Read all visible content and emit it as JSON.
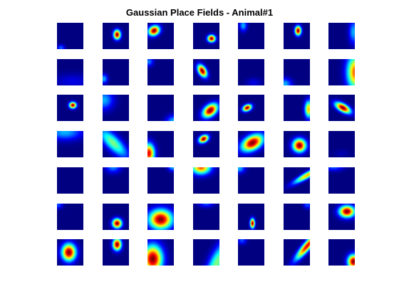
{
  "chart_data": {
    "type": "heatmap",
    "title": "Gaussian Place Fields - Animal#1",
    "grid": {
      "rows": 7,
      "cols": 7
    },
    "colormap": "jet",
    "background_color": "#00008f",
    "xlim": [
      0,
      1
    ],
    "ylim": [
      0,
      1
    ],
    "axes_visible": false,
    "fields": [
      [
        {
          "cx": 0.15,
          "cy": 0.95,
          "sx": 0.1,
          "sy": 0.08,
          "theta": 0,
          "amp": 0.22
        },
        {
          "cx": 0.55,
          "cy": 0.45,
          "sx": 0.09,
          "sy": 0.12,
          "theta": 0,
          "amp": 1.0
        },
        {
          "cx": 0.25,
          "cy": 0.3,
          "sx": 0.15,
          "sy": 0.12,
          "theta": -30,
          "amp": 1.0
        },
        {
          "cx": 0.7,
          "cy": 0.6,
          "sx": 0.1,
          "sy": 0.09,
          "theta": 0,
          "amp": 1.0
        },
        {
          "cx": 0.2,
          "cy": 0.1,
          "sx": 0.1,
          "sy": 0.15,
          "theta": 0,
          "amp": 0.3
        },
        {
          "cx": 0.55,
          "cy": 0.3,
          "sx": 0.08,
          "sy": 0.12,
          "theta": 0,
          "amp": 1.0
        },
        {
          "cx": 0.95,
          "cy": 0.35,
          "sx": 0.12,
          "sy": 0.3,
          "theta": 0,
          "amp": 0.3
        }
      ],
      [
        {
          "cx": 0.6,
          "cy": 0.85,
          "sx": 0.5,
          "sy": 0.2,
          "theta": 0,
          "amp": 0.1
        },
        {
          "cx": 0.05,
          "cy": 0.75,
          "sx": 0.1,
          "sy": 0.12,
          "theta": 0,
          "amp": 0.3
        },
        {
          "cx": 0.05,
          "cy": 0.1,
          "sx": 0.12,
          "sy": 0.12,
          "theta": 0,
          "amp": 0.25
        },
        {
          "cx": 0.35,
          "cy": 0.45,
          "sx": 0.1,
          "sy": 0.17,
          "theta": -30,
          "amp": 1.0
        },
        {
          "cx": 0.6,
          "cy": 0.9,
          "sx": 0.2,
          "sy": 0.12,
          "theta": 0,
          "amp": 0.1
        },
        {
          "cx": 0.05,
          "cy": 0.95,
          "sx": 0.18,
          "sy": 0.15,
          "theta": 0,
          "amp": 0.3
        },
        {
          "cx": 1.02,
          "cy": 0.5,
          "sx": 0.22,
          "sy": 0.45,
          "theta": 0,
          "amp": 0.8
        }
      ],
      [
        {
          "cx": 0.6,
          "cy": 0.4,
          "sx": 0.09,
          "sy": 0.08,
          "theta": 0,
          "amp": 1.0
        },
        {
          "cx": 0.05,
          "cy": 0.2,
          "sx": 0.25,
          "sy": 0.25,
          "theta": 30,
          "amp": 0.3
        },
        {
          "cx": 1.0,
          "cy": 1.0,
          "sx": 0.2,
          "sy": 0.15,
          "theta": 0,
          "amp": 0.3
        },
        {
          "cx": 0.65,
          "cy": 0.6,
          "sx": 0.22,
          "sy": 0.14,
          "theta": -40,
          "amp": 1.0
        },
        {
          "cx": 0.35,
          "cy": 0.5,
          "sx": 0.12,
          "sy": 0.08,
          "theta": -25,
          "amp": 1.0
        },
        {
          "cx": 0.95,
          "cy": 0.55,
          "sx": 0.1,
          "sy": 0.22,
          "theta": 0,
          "amp": 0.7
        },
        {
          "cx": 0.55,
          "cy": 0.5,
          "sx": 0.22,
          "sy": 0.1,
          "theta": 30,
          "amp": 1.0
        }
      ],
      [
        {
          "cx": 0.3,
          "cy": 0.05,
          "sx": 0.45,
          "sy": 0.2,
          "theta": 0,
          "amp": 0.3
        },
        {
          "cx": 0.4,
          "cy": 0.45,
          "sx": 0.5,
          "sy": 0.18,
          "theta": 45,
          "amp": 0.5
        },
        {
          "cx": 0.05,
          "cy": 0.85,
          "sx": 0.15,
          "sy": 0.25,
          "theta": 0,
          "amp": 0.9
        },
        {
          "cx": 0.4,
          "cy": 0.3,
          "sx": 0.13,
          "sy": 0.09,
          "theta": -30,
          "amp": 1.0
        },
        {
          "cx": 0.55,
          "cy": 0.45,
          "sx": 0.3,
          "sy": 0.18,
          "theta": -30,
          "amp": 1.0
        },
        {
          "cx": 0.6,
          "cy": 0.55,
          "sx": 0.17,
          "sy": 0.17,
          "theta": 0,
          "amp": 1.0
        },
        {
          "cx": 0.5,
          "cy": 0.85,
          "sx": 0.2,
          "sy": 0.1,
          "theta": 0,
          "amp": 0.05
        }
      ],
      [
        {
          "cx": 0.5,
          "cy": 0.5,
          "sx": 0.2,
          "sy": 0.2,
          "theta": 0,
          "amp": 0.0
        },
        {
          "cx": 0.4,
          "cy": 0.0,
          "sx": 0.2,
          "sy": 0.15,
          "theta": 0,
          "amp": 0.25
        },
        {
          "cx": 0.95,
          "cy": 0.0,
          "sx": 0.12,
          "sy": 0.1,
          "theta": 0,
          "amp": 0.3
        },
        {
          "cx": 0.3,
          "cy": 0.0,
          "sx": 0.25,
          "sy": 0.18,
          "theta": 0,
          "amp": 0.8
        },
        {
          "cx": 0.05,
          "cy": 0.05,
          "sx": 0.15,
          "sy": 0.12,
          "theta": 0,
          "amp": 0.3
        },
        {
          "cx": 0.9,
          "cy": 0.3,
          "sx": 0.4,
          "sy": 0.08,
          "theta": -30,
          "amp": 0.7
        },
        {
          "cx": 0.2,
          "cy": 0.0,
          "sx": 0.25,
          "sy": 0.1,
          "theta": 0,
          "amp": 0.2
        }
      ],
      [
        {
          "cx": 0.05,
          "cy": 0.05,
          "sx": 0.12,
          "sy": 0.1,
          "theta": 0,
          "amp": 0.2
        },
        {
          "cx": 0.55,
          "cy": 0.75,
          "sx": 0.12,
          "sy": 0.12,
          "theta": 0,
          "amp": 1.0
        },
        {
          "cx": 0.5,
          "cy": 0.6,
          "sx": 0.3,
          "sy": 0.25,
          "theta": 0,
          "amp": 1.0
        },
        {
          "cx": 0.5,
          "cy": 0.0,
          "sx": 0.2,
          "sy": 0.1,
          "theta": 0,
          "amp": 0.2
        },
        {
          "cx": 0.55,
          "cy": 0.75,
          "sx": 0.06,
          "sy": 0.12,
          "theta": 0,
          "amp": 1.0
        },
        {
          "cx": 0.9,
          "cy": 0.05,
          "sx": 0.1,
          "sy": 0.1,
          "theta": 0,
          "amp": 0.2
        },
        {
          "cx": 0.7,
          "cy": 0.3,
          "sx": 0.2,
          "sy": 0.15,
          "theta": 0,
          "amp": 1.0
        }
      ],
      [
        {
          "cx": 0.45,
          "cy": 0.5,
          "sx": 0.18,
          "sy": 0.22,
          "theta": 0,
          "amp": 1.0
        },
        {
          "cx": 0.55,
          "cy": 0.2,
          "sx": 0.11,
          "sy": 0.15,
          "theta": 0,
          "amp": 1.0
        },
        {
          "cx": 0.2,
          "cy": 0.75,
          "sx": 0.25,
          "sy": 0.35,
          "theta": 0,
          "amp": 1.0
        },
        {
          "cx": 0.9,
          "cy": 0.9,
          "sx": 0.2,
          "sy": 0.6,
          "theta": 25,
          "amp": 0.5
        },
        {
          "cx": 0.15,
          "cy": 0.05,
          "sx": 0.12,
          "sy": 0.1,
          "theta": 0,
          "amp": 0.2
        },
        {
          "cx": 0.9,
          "cy": 0.25,
          "sx": 0.45,
          "sy": 0.1,
          "theta": -50,
          "amp": 0.9
        },
        {
          "cx": 0.95,
          "cy": 0.85,
          "sx": 0.15,
          "sy": 0.18,
          "theta": 0,
          "amp": 1.0
        }
      ]
    ]
  }
}
